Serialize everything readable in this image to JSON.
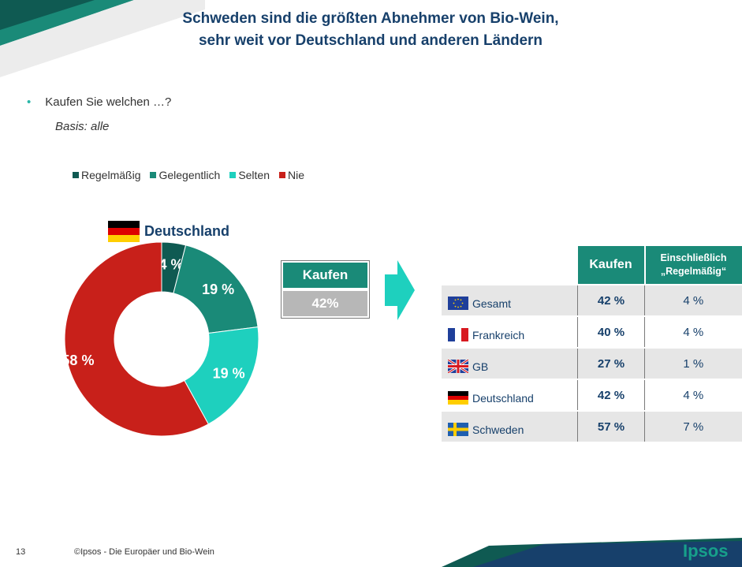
{
  "header": {
    "title_line1": "Schweden sind die größten Abnehmer von Bio-Wein,",
    "title_line2": "sehr weit vor Deutschland und anderen Ländern"
  },
  "question": {
    "text": "Kaufen Sie welchen …?",
    "basis": "Basis: alle"
  },
  "colors": {
    "regelmaessig": "#0f5a52",
    "gelegentlich": "#1a8a78",
    "selten": "#1ed0be",
    "nie": "#c8201a",
    "title": "#17406b"
  },
  "chart_data": [
    {
      "type": "pie",
      "title": "Deutschland",
      "donut": true,
      "legend_position": "top",
      "labels": [
        "Regelmäßig",
        "Gelegentlich",
        "Selten",
        "Nie"
      ],
      "values": [
        4,
        19,
        19,
        58
      ],
      "value_labels": [
        "4 %",
        "19 %",
        "19 %",
        "58 %"
      ],
      "colors": [
        "#0f5a52",
        "#1a8a78",
        "#1ed0be",
        "#c8201a"
      ]
    },
    {
      "type": "table",
      "columns": [
        "",
        "Kaufen",
        "Einschließlich „Regelmäßig“"
      ],
      "rows": [
        {
          "country": "Gesamt",
          "flag": "eu-flag",
          "kaufen": "42 %",
          "regelmaessig": "4 %"
        },
        {
          "country": "Frankreich",
          "flag": "france-flag",
          "kaufen": "40 %",
          "regelmaessig": "4 %"
        },
        {
          "country": "GB",
          "flag": "uk-flag",
          "kaufen": "27 %",
          "regelmaessig": "1 %"
        },
        {
          "country": "Deutschland",
          "flag": "germany-flag",
          "kaufen": "42 %",
          "regelmaessig": "4 %"
        },
        {
          "country": "Schweden",
          "flag": "sweden-flag",
          "kaufen": "57 %",
          "regelmaessig": "7 %"
        }
      ]
    }
  ],
  "summary_box": {
    "label": "Kaufen",
    "value": "42%"
  },
  "table_header": {
    "kaufen": "Kaufen",
    "regel_line1": "Einschließlich",
    "regel_line2": "„Regelmäßig“"
  },
  "footer": {
    "page": "13",
    "text": "©Ipsos - Die Europäer und Bio-Wein",
    "logo": "Ipsos"
  }
}
